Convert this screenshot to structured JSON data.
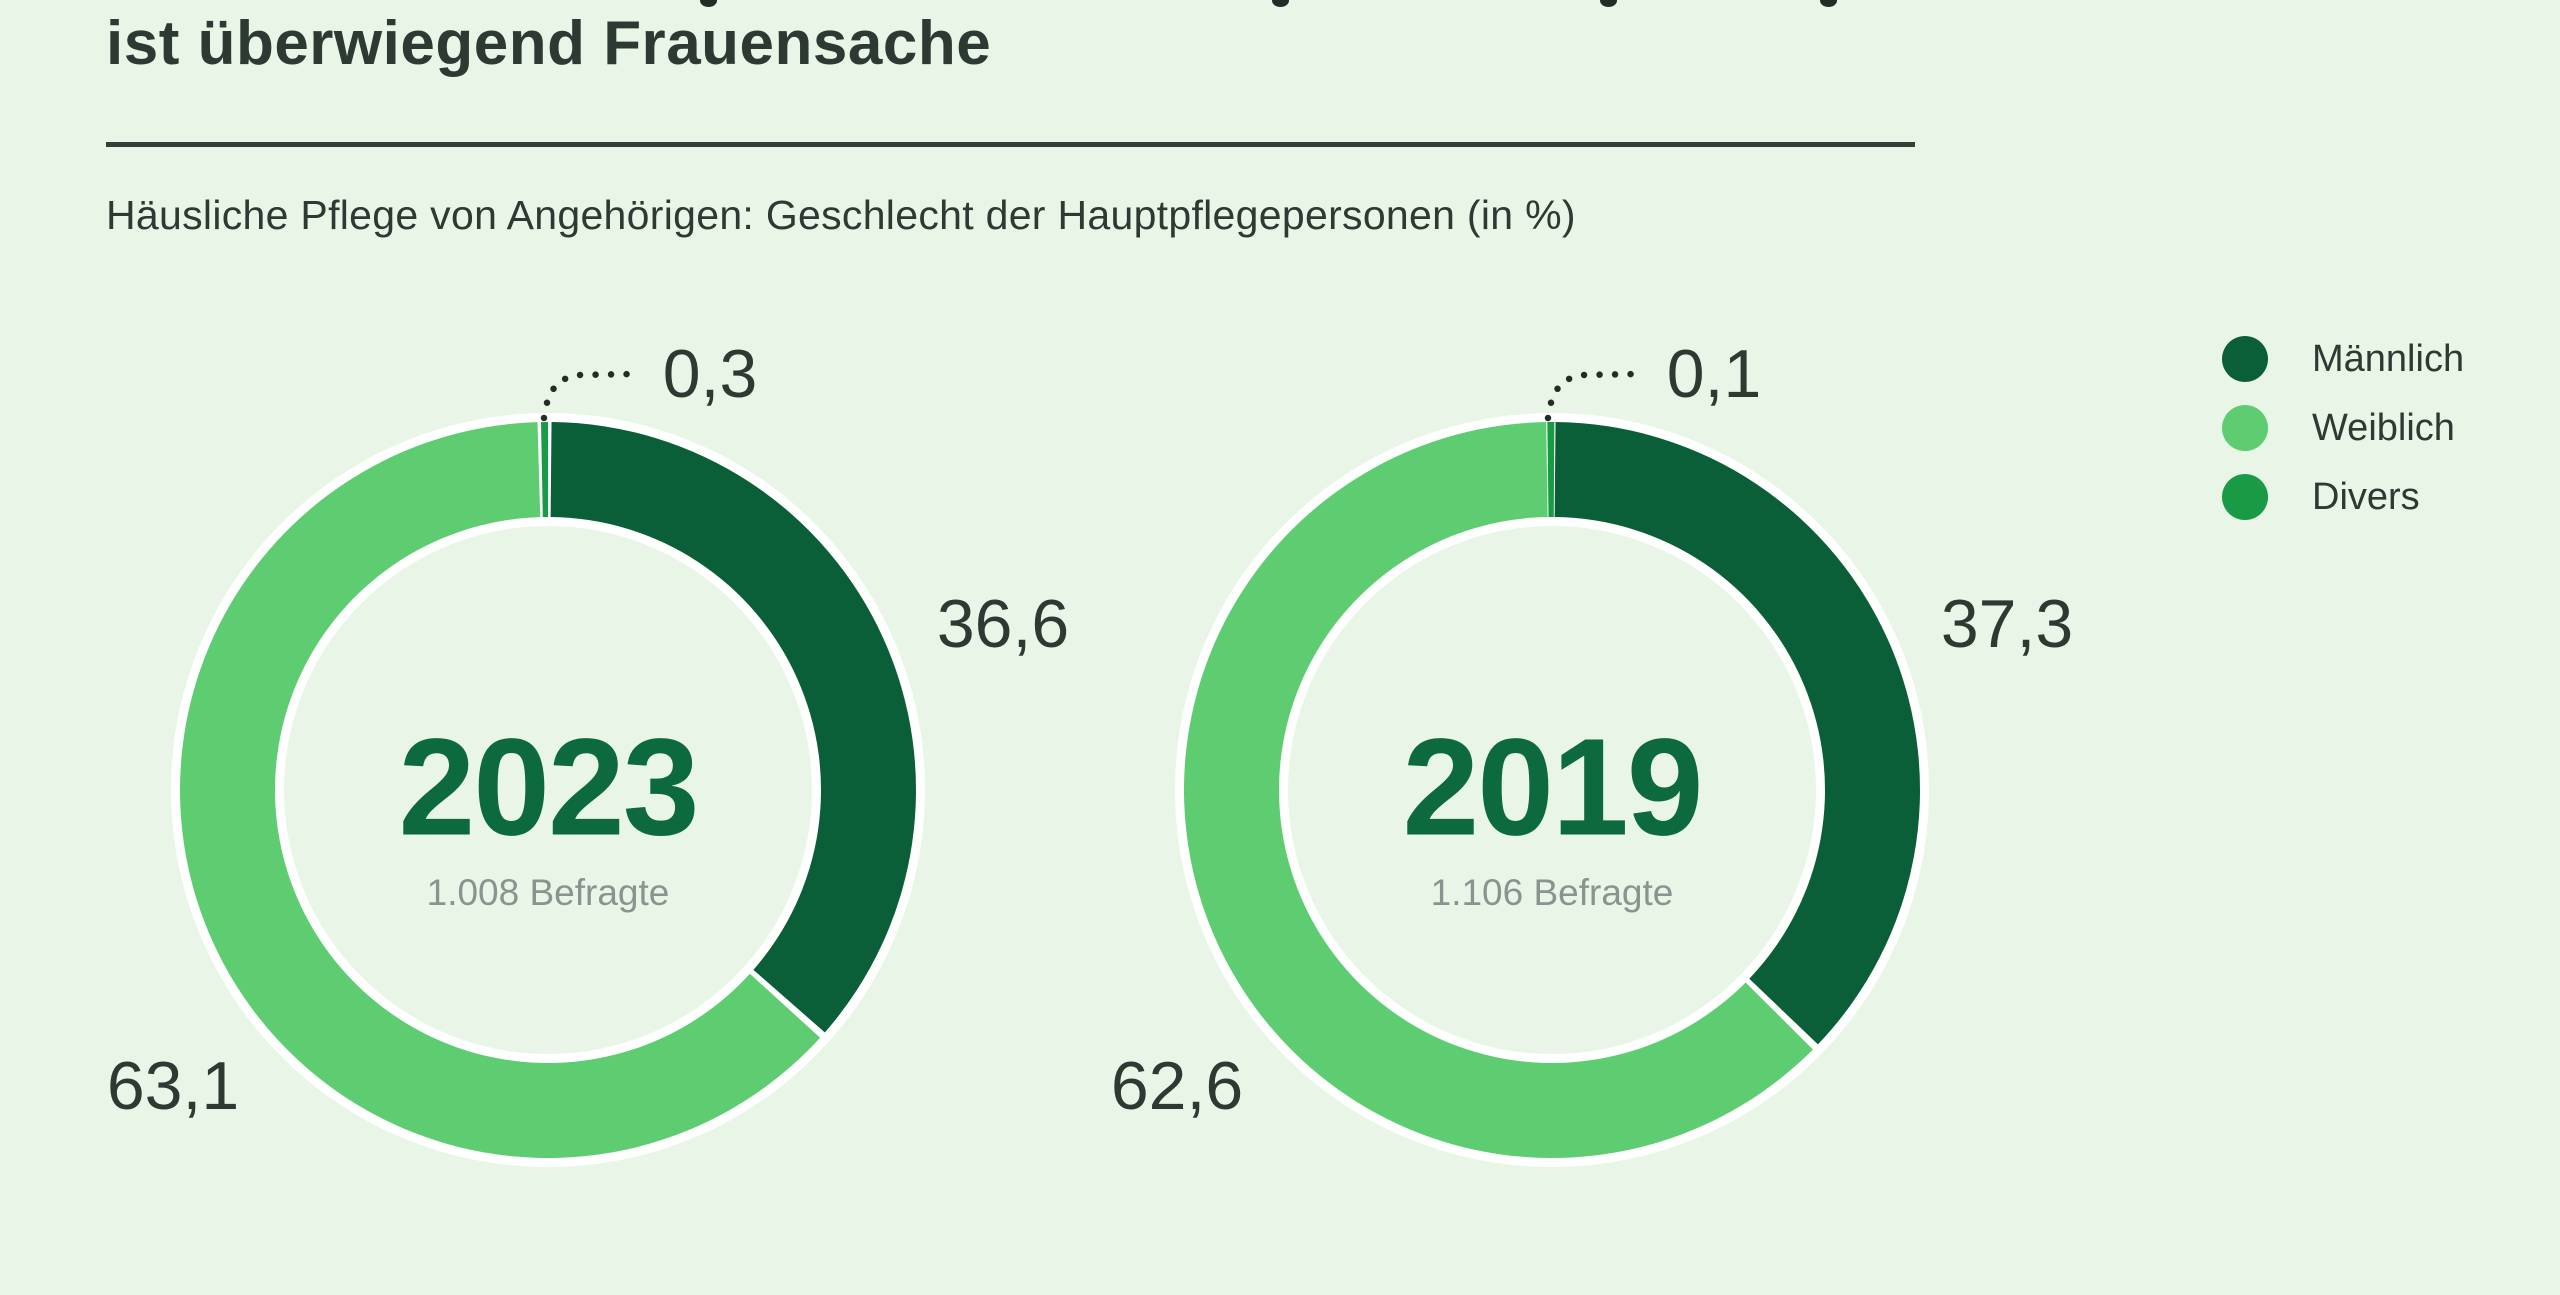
{
  "header": {
    "title_visible_line": "ist überwiegend Frauensache",
    "subtitle": "Häusliche Pflege von Angehörigen: Geschlecht der Hauptpflegepersonen (in %)"
  },
  "legend": {
    "items": [
      {
        "label": "Männlich",
        "color": "#0a5f38"
      },
      {
        "label": "Weiblich",
        "color": "#5ecd71"
      },
      {
        "label": "Divers",
        "color": "#189b44"
      }
    ]
  },
  "colors": {
    "background": "#e9f5e6",
    "text": "#2d3a34",
    "muted_text": "#8b9390",
    "year_text": "#0c6a3e",
    "divider": "#343f39",
    "leader_dots": "#232d28",
    "ring_outline": "#ffffff"
  },
  "chart_data": [
    {
      "type": "pie",
      "variant": "donut",
      "center_label": "2023",
      "center_sublabel": "1.008 Befragte",
      "categories": [
        "Männlich",
        "Weiblich",
        "Divers"
      ],
      "values": [
        36.6,
        63.1,
        0.3
      ],
      "value_labels": [
        "36,6",
        "63,1",
        "0,3"
      ],
      "unit": "%",
      "start_angle_deg": 0,
      "direction": "clockwise",
      "legend_position": "top-right"
    },
    {
      "type": "pie",
      "variant": "donut",
      "center_label": "2019",
      "center_sublabel": "1.106 Befragte",
      "categories": [
        "Männlich",
        "Weiblich",
        "Divers"
      ],
      "values": [
        37.3,
        62.6,
        0.1
      ],
      "value_labels": [
        "37,3",
        "62,6",
        "0,1"
      ],
      "unit": "%",
      "start_angle_deg": 0,
      "direction": "clockwise",
      "legend_position": "top-right"
    }
  ]
}
